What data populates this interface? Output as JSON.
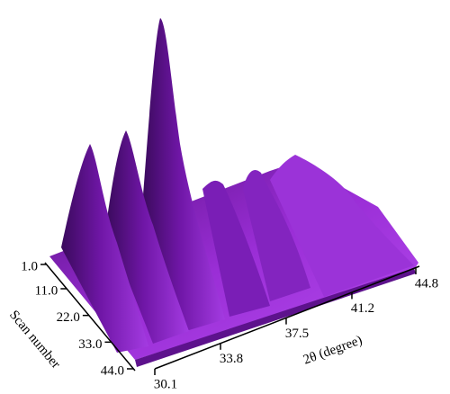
{
  "chart_data": {
    "type": "surface",
    "xlabel": "2θ (degree)",
    "ylabel": "Scan number",
    "xlim": [
      30.1,
      44.8
    ],
    "xticks": [
      30.1,
      33.8,
      37.5,
      41.2,
      44.8
    ],
    "ylim": [
      1,
      44
    ],
    "yticks": [
      {
        "value": 1,
        "label": "1.0"
      },
      {
        "value": 11,
        "label": "11.0"
      },
      {
        "value": 22,
        "label": "22.0"
      },
      {
        "value": 33,
        "label": "33.0"
      },
      {
        "value": 44,
        "label": "44.0"
      }
    ],
    "color": "#8a1fc4"
  }
}
